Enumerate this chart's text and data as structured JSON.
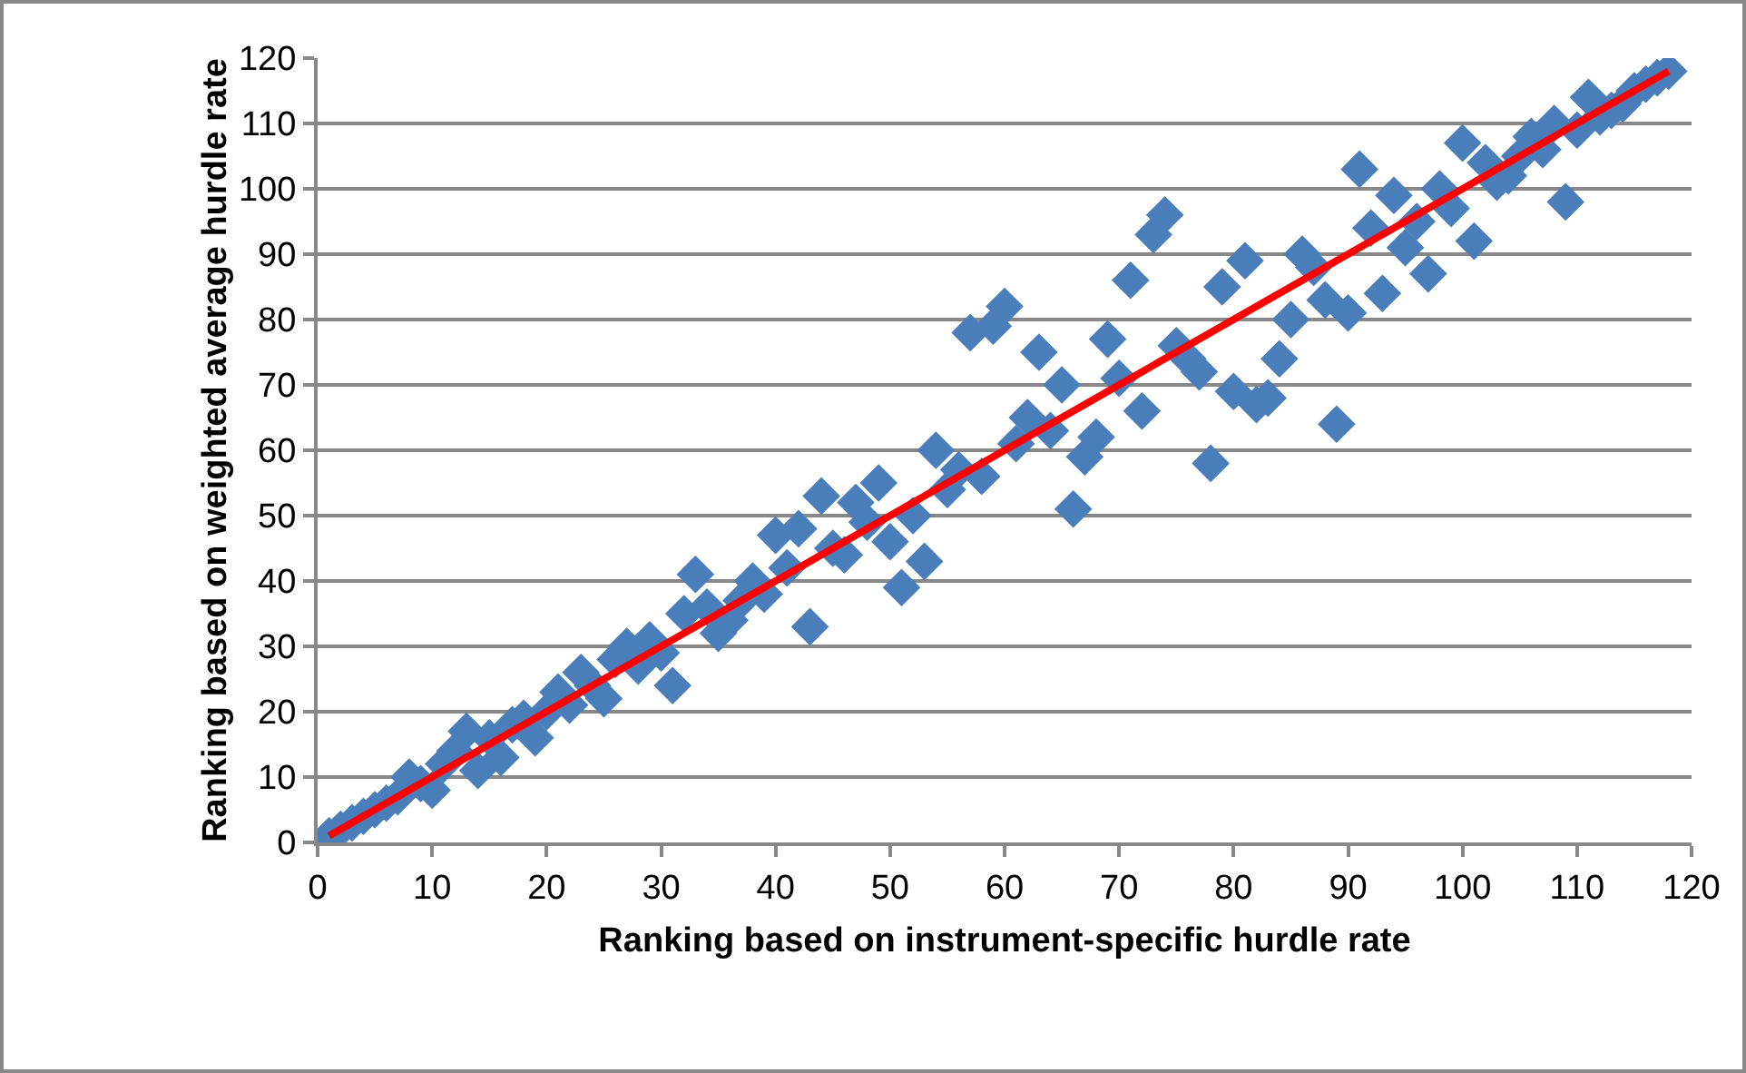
{
  "chart_data": {
    "type": "scatter",
    "xlabel": "Ranking based on instrument-specific hurdle rate",
    "ylabel": "Ranking based on weighted average hurdle rate",
    "xlim": [
      0,
      120
    ],
    "xticks": [
      0,
      10,
      20,
      30,
      40,
      50,
      60,
      70,
      80,
      90,
      100,
      110,
      120
    ],
    "ylim": [
      0,
      120
    ],
    "yticks": [
      0,
      10,
      20,
      30,
      40,
      50,
      60,
      70,
      80,
      90,
      100,
      110,
      120
    ],
    "grid": "y",
    "series": [
      {
        "marker": "diamond",
        "color": "#4a7ebb",
        "x": [
          1,
          2,
          3,
          4,
          5,
          6,
          7,
          8,
          9,
          10,
          11,
          12,
          13,
          14,
          15,
          16,
          17,
          18,
          19,
          20,
          21,
          22,
          23,
          24,
          25,
          26,
          27,
          28,
          29,
          30,
          31,
          32,
          33,
          34,
          35,
          36,
          37,
          38,
          39,
          40,
          41,
          42,
          43,
          44,
          45,
          46,
          47,
          48,
          49,
          50,
          51,
          52,
          53,
          54,
          55,
          56,
          57,
          58,
          59,
          60,
          61,
          62,
          63,
          64,
          65,
          66,
          67,
          68,
          69,
          70,
          71,
          72,
          73,
          74,
          75,
          76,
          77,
          78,
          79,
          80,
          81,
          82,
          83,
          84,
          85,
          86,
          87,
          88,
          89,
          90,
          91,
          92,
          93,
          94,
          95,
          96,
          97,
          98,
          99,
          100,
          101,
          102,
          103,
          104,
          105,
          106,
          107,
          108,
          109,
          110,
          111,
          112,
          113,
          114,
          115,
          116,
          117,
          118
        ],
        "values": [
          1,
          2,
          3,
          4,
          5,
          6,
          7,
          10,
          9,
          8,
          12,
          14,
          17,
          11,
          16,
          13,
          18,
          19,
          16,
          20,
          23,
          21,
          26,
          24,
          22,
          28,
          30,
          27,
          31,
          29,
          24,
          35,
          41,
          36,
          32,
          34,
          37,
          40,
          38,
          47,
          42,
          48,
          33,
          53,
          45,
          44,
          52,
          49,
          55,
          46,
          39,
          50,
          43,
          60,
          54,
          57,
          78,
          56,
          79,
          82,
          61,
          65,
          75,
          63,
          70,
          51,
          59,
          62,
          77,
          71,
          86,
          66,
          93,
          96,
          76,
          74,
          72,
          58,
          85,
          69,
          89,
          67,
          68,
          74,
          80,
          90,
          88,
          83,
          64,
          81,
          103,
          94,
          84,
          99,
          91,
          95,
          87,
          100,
          97,
          107,
          92,
          104,
          101,
          102,
          105,
          108,
          106,
          110,
          98,
          109,
          114,
          111,
          112,
          113,
          115,
          116,
          117,
          118
        ]
      },
      {
        "type": "line",
        "color": "#ff0000",
        "line_style": "solid",
        "x": [
          1,
          118
        ],
        "values": [
          1,
          118
        ]
      }
    ]
  }
}
